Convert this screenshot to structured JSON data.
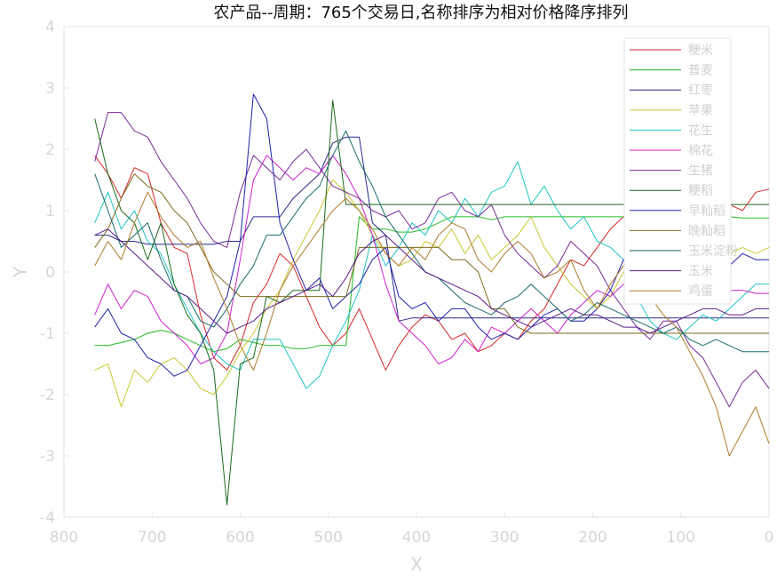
{
  "chart_data": {
    "type": "line",
    "title": "农产品--周期：765个交易日,名称排序为相对价格降序排列",
    "xlabel": "X",
    "ylabel": "Y",
    "xlim": [
      800,
      0
    ],
    "ylim": [
      -4,
      4
    ],
    "x_reversed": true,
    "xticks": [
      "800",
      "700",
      "600",
      "500",
      "400",
      "300",
      "200",
      "100",
      "0"
    ],
    "yticks": [
      "4",
      "3",
      "2",
      "1",
      "0",
      "-1",
      "-2",
      "-3",
      "-4"
    ],
    "legend_position": "top-right",
    "x": [
      765,
      750,
      735,
      720,
      705,
      690,
      675,
      660,
      645,
      630,
      615,
      600,
      585,
      570,
      555,
      540,
      525,
      510,
      495,
      480,
      465,
      450,
      435,
      420,
      405,
      390,
      375,
      360,
      345,
      330,
      315,
      300,
      285,
      270,
      255,
      240,
      225,
      210,
      195,
      180,
      165,
      150,
      135,
      120,
      105,
      90,
      75,
      60,
      45,
      30,
      15,
      0
    ],
    "series": [
      {
        "name": "粳米",
        "color": "#d62728",
        "values": [
          1.9,
          1.6,
          1.2,
          1.7,
          1.6,
          0.8,
          0.4,
          0.3,
          -0.7,
          -1.4,
          -1.6,
          -1.2,
          -0.5,
          -0.2,
          0.3,
          0.1,
          -0.4,
          -0.9,
          -1.2,
          -1.0,
          -0.6,
          -1.1,
          -1.6,
          -1.2,
          -0.9,
          -0.7,
          -0.8,
          -1.1,
          -1.0,
          -1.3,
          -1.2,
          -1.0,
          -1.1,
          -0.8,
          -0.6,
          -0.2,
          0.2,
          0.1,
          0.4,
          0.7,
          0.9,
          0.6,
          0.4,
          0.6,
          0.8,
          0.7,
          0.9,
          1.0,
          1.1,
          1.0,
          1.3,
          1.35
        ]
      },
      {
        "name": "普麦",
        "color": "#22bb22",
        "values": [
          -1.2,
          -1.2,
          -1.15,
          -1.1,
          -1.0,
          -0.95,
          -1.0,
          -1.1,
          -1.2,
          -1.3,
          -1.25,
          -1.1,
          -1.15,
          -1.2,
          -1.2,
          -1.25,
          -1.25,
          -1.2,
          -1.2,
          -1.2,
          0.9,
          0.7,
          0.7,
          0.65,
          0.65,
          0.7,
          0.8,
          0.9,
          0.9,
          0.9,
          0.85,
          0.9,
          0.9,
          0.9,
          0.9,
          0.9,
          0.9,
          0.9,
          0.9,
          0.9,
          0.9,
          0.9,
          0.9,
          0.9,
          0.9,
          0.9,
          0.9,
          0.9,
          0.9,
          0.88,
          0.88,
          0.88
        ]
      },
      {
        "name": "红枣",
        "color": "#2a2a8a",
        "values": [
          0.6,
          0.6,
          0.5,
          0.5,
          0.45,
          0.45,
          0.45,
          0.45,
          0.45,
          0.45,
          0.5,
          0.5,
          0.9,
          0.9,
          0.9,
          1.2,
          1.4,
          1.6,
          2.1,
          2.2,
          2.2,
          0.8,
          0.6,
          -0.8,
          -0.75,
          -0.75,
          -0.75,
          -0.75,
          -0.75,
          -0.75,
          -0.75,
          -0.75,
          -0.75,
          -0.75,
          -0.75,
          -0.75,
          -0.75,
          -0.75,
          -0.75,
          -0.75,
          -0.75,
          -0.75,
          -0.75,
          -0.75,
          -0.75,
          -0.75,
          -0.75,
          -0.75,
          -0.75,
          -0.75,
          -0.75,
          -0.75
        ]
      },
      {
        "name": "苹果",
        "color": "#c8c832",
        "values": [
          -1.6,
          -1.5,
          -2.2,
          -1.6,
          -1.8,
          -1.5,
          -1.4,
          -1.6,
          -1.9,
          -2.0,
          -1.7,
          -1.3,
          -1.0,
          -0.6,
          -0.3,
          0.2,
          0.6,
          1.0,
          1.5,
          1.3,
          1.0,
          0.6,
          0.3,
          0.1,
          0.2,
          0.5,
          0.4,
          0.7,
          0.3,
          0.6,
          0.2,
          0.4,
          0.6,
          0.9,
          0.4,
          0.1,
          -0.2,
          -0.4,
          -0.6,
          -0.4,
          0.0,
          0.2,
          0.1,
          -0.1,
          0.3,
          0.5,
          0.4,
          0.5,
          0.3,
          0.4,
          0.3,
          0.4
        ]
      },
      {
        "name": "花生",
        "color": "#22c4c4",
        "values": [
          0.8,
          1.3,
          0.7,
          1.0,
          0.5,
          0.3,
          -0.2,
          -0.6,
          -1.0,
          -1.3,
          -1.5,
          -1.6,
          -1.1,
          -1.1,
          -1.1,
          -1.5,
          -1.9,
          -1.7,
          -1.2,
          -0.8,
          -0.3,
          0.6,
          0.1,
          0.4,
          0.8,
          0.6,
          1.0,
          0.8,
          1.2,
          0.9,
          1.3,
          1.4,
          1.8,
          1.1,
          1.4,
          1.0,
          0.7,
          0.9,
          0.5,
          0.4,
          0.2,
          -0.4,
          -0.8,
          -1.0,
          -1.1,
          -0.9,
          -0.7,
          -0.8,
          -0.6,
          -0.4,
          -0.2,
          -0.2
        ]
      },
      {
        "name": "棉花",
        "color": "#cc22cc",
        "values": [
          -0.7,
          -0.2,
          -0.6,
          -0.3,
          -0.4,
          -0.8,
          -1.0,
          -1.2,
          -1.5,
          -1.4,
          -1.0,
          0.2,
          1.5,
          1.9,
          1.7,
          1.5,
          1.7,
          1.6,
          1.9,
          1.6,
          1.2,
          0.6,
          -0.2,
          -0.8,
          -1.0,
          -1.2,
          -1.5,
          -1.4,
          -1.1,
          -1.3,
          -0.9,
          -1.0,
          -0.8,
          -0.6,
          -0.8,
          -1.0,
          -0.7,
          -0.5,
          -0.3,
          -0.4,
          -0.2,
          -0.3,
          -0.4,
          -0.5,
          -0.5,
          -0.4,
          -0.4,
          -0.4,
          -0.3,
          -0.3,
          -0.35,
          -0.35
        ]
      },
      {
        "name": "生猪",
        "color": "#7a2a9a",
        "values": [
          1.8,
          2.6,
          2.6,
          2.3,
          2.2,
          1.8,
          1.5,
          1.2,
          0.8,
          0.5,
          0.4,
          1.3,
          1.9,
          1.7,
          1.5,
          1.8,
          2.0,
          1.7,
          1.4,
          1.3,
          1.2,
          1.0,
          0.9,
          1.0,
          0.7,
          0.8,
          1.2,
          1.3,
          1.0,
          0.9,
          1.1,
          0.6,
          0.3,
          0.1,
          -0.1,
          0.1,
          0.5,
          0.3,
          0.1,
          -0.3,
          -0.6,
          -0.9,
          -1.1,
          -0.8,
          -0.8,
          -1.2,
          -1.4,
          -1.8,
          -2.2,
          -1.8,
          -1.6,
          -1.9
        ]
      },
      {
        "name": "粳稻",
        "color": "#1a6a1a",
        "values": [
          2.5,
          1.6,
          1.0,
          0.8,
          0.2,
          0.8,
          -0.2,
          -0.7,
          -1.0,
          -1.6,
          -3.8,
          -1.5,
          -1.4,
          -0.4,
          -0.5,
          -0.3,
          -0.3,
          -0.3,
          2.8,
          1.1,
          1.1,
          1.1,
          1.1,
          1.1,
          1.1,
          1.1,
          1.1,
          1.1,
          1.1,
          1.1,
          1.1,
          1.1,
          1.1,
          1.1,
          1.1,
          1.1,
          1.1,
          1.1,
          1.1,
          1.1,
          1.1,
          1.1,
          1.1,
          1.1,
          1.1,
          1.1,
          1.1,
          1.1,
          1.1,
          1.1,
          1.1,
          1.1
        ]
      },
      {
        "name": "早籼稻",
        "color": "#2222aa",
        "values": [
          -0.9,
          -0.6,
          -1.0,
          -1.1,
          -1.4,
          -1.5,
          -1.7,
          -1.6,
          -1.2,
          -0.8,
          -0.4,
          0.5,
          2.9,
          2.5,
          0.8,
          0.2,
          -0.3,
          -0.1,
          -0.6,
          -0.4,
          -0.2,
          0.2,
          0.4,
          -0.4,
          -0.6,
          -0.5,
          -0.8,
          -0.6,
          -0.6,
          -0.9,
          -1.1,
          -1.0,
          -1.1,
          -0.9,
          -0.7,
          -0.6,
          -0.8,
          -0.8,
          -0.6,
          -0.3,
          0.2,
          0.4,
          0.0,
          -0.2,
          -0.1,
          0.1,
          0.0,
          0.2,
          0.1,
          0.3,
          0.2,
          0.2
        ]
      },
      {
        "name": "晚籼稻",
        "color": "#7a6a1a",
        "values": [
          0.4,
          0.7,
          1.2,
          1.6,
          1.4,
          1.3,
          1.0,
          0.8,
          0.4,
          0.0,
          -0.2,
          -0.4,
          -0.4,
          -0.4,
          -0.4,
          -0.4,
          -0.4,
          -0.4,
          -0.4,
          -0.4,
          0.4,
          0.4,
          0.4,
          0.4,
          0.4,
          0.4,
          0.4,
          0.2,
          0.2,
          0.0,
          -0.6,
          -0.6,
          -0.9,
          -1.0,
          -1.0,
          -1.0,
          -1.0,
          -1.0,
          -1.0,
          -1.0,
          -1.0,
          -1.0,
          -1.0,
          -1.0,
          -1.0,
          -1.0,
          -1.0,
          -1.0,
          -1.0,
          -1.0,
          -1.0,
          -1.0
        ]
      },
      {
        "name": "玉米淀粉",
        "color": "#1a6a6a",
        "values": [
          1.6,
          1.0,
          0.4,
          0.6,
          0.8,
          0.2,
          -0.3,
          -0.4,
          -0.8,
          -0.9,
          -0.6,
          -0.2,
          0.1,
          0.6,
          0.6,
          0.9,
          1.2,
          1.4,
          1.9,
          2.3,
          1.8,
          1.4,
          0.9,
          0.6,
          0.3,
          0.0,
          -0.1,
          -0.3,
          -0.5,
          -0.6,
          -0.7,
          -0.5,
          -0.4,
          -0.2,
          -0.4,
          -0.6,
          -0.8,
          -0.7,
          -0.5,
          -0.6,
          -0.7,
          -0.8,
          -0.9,
          -1.0,
          -0.9,
          -1.1,
          -1.2,
          -1.1,
          -1.2,
          -1.3,
          -1.3,
          -1.3
        ]
      },
      {
        "name": "玉米",
        "color": "#5a1a8a",
        "values": [
          0.6,
          0.7,
          0.5,
          0.3,
          0.1,
          -0.1,
          -0.3,
          -0.4,
          -0.6,
          -0.8,
          -1.0,
          -0.9,
          -0.8,
          -0.6,
          -0.5,
          -0.4,
          -0.3,
          -0.2,
          -0.4,
          -0.1,
          0.3,
          0.5,
          0.6,
          0.4,
          0.2,
          0.0,
          -0.1,
          -0.2,
          -0.3,
          -0.4,
          -0.6,
          -0.7,
          -0.8,
          -0.9,
          -0.8,
          -0.7,
          -0.6,
          -0.7,
          -0.7,
          -0.8,
          -0.9,
          -0.9,
          -1.0,
          -0.9,
          -0.8,
          -0.7,
          -0.6,
          -0.6,
          -0.7,
          -0.7,
          -0.6,
          -0.6
        ]
      },
      {
        "name": "鸡蛋",
        "color": "#b07a2a",
        "values": [
          0.1,
          0.5,
          0.2,
          0.8,
          1.3,
          0.9,
          0.6,
          0.4,
          0.5,
          -0.1,
          -0.6,
          -1.2,
          -1.6,
          -1.0,
          -0.3,
          0.1,
          0.4,
          0.7,
          1.0,
          1.2,
          1.0,
          0.7,
          0.3,
          0.1,
          0.4,
          0.2,
          0.6,
          0.8,
          0.7,
          0.2,
          0.0,
          0.3,
          0.5,
          0.3,
          -0.1,
          0.0,
          0.2,
          -0.3,
          -0.6,
          -0.2,
          0.1,
          -0.1,
          -0.4,
          -0.7,
          -0.9,
          -1.3,
          -1.7,
          -2.2,
          -3.0,
          -2.6,
          -2.2,
          -2.8
        ]
      }
    ]
  }
}
